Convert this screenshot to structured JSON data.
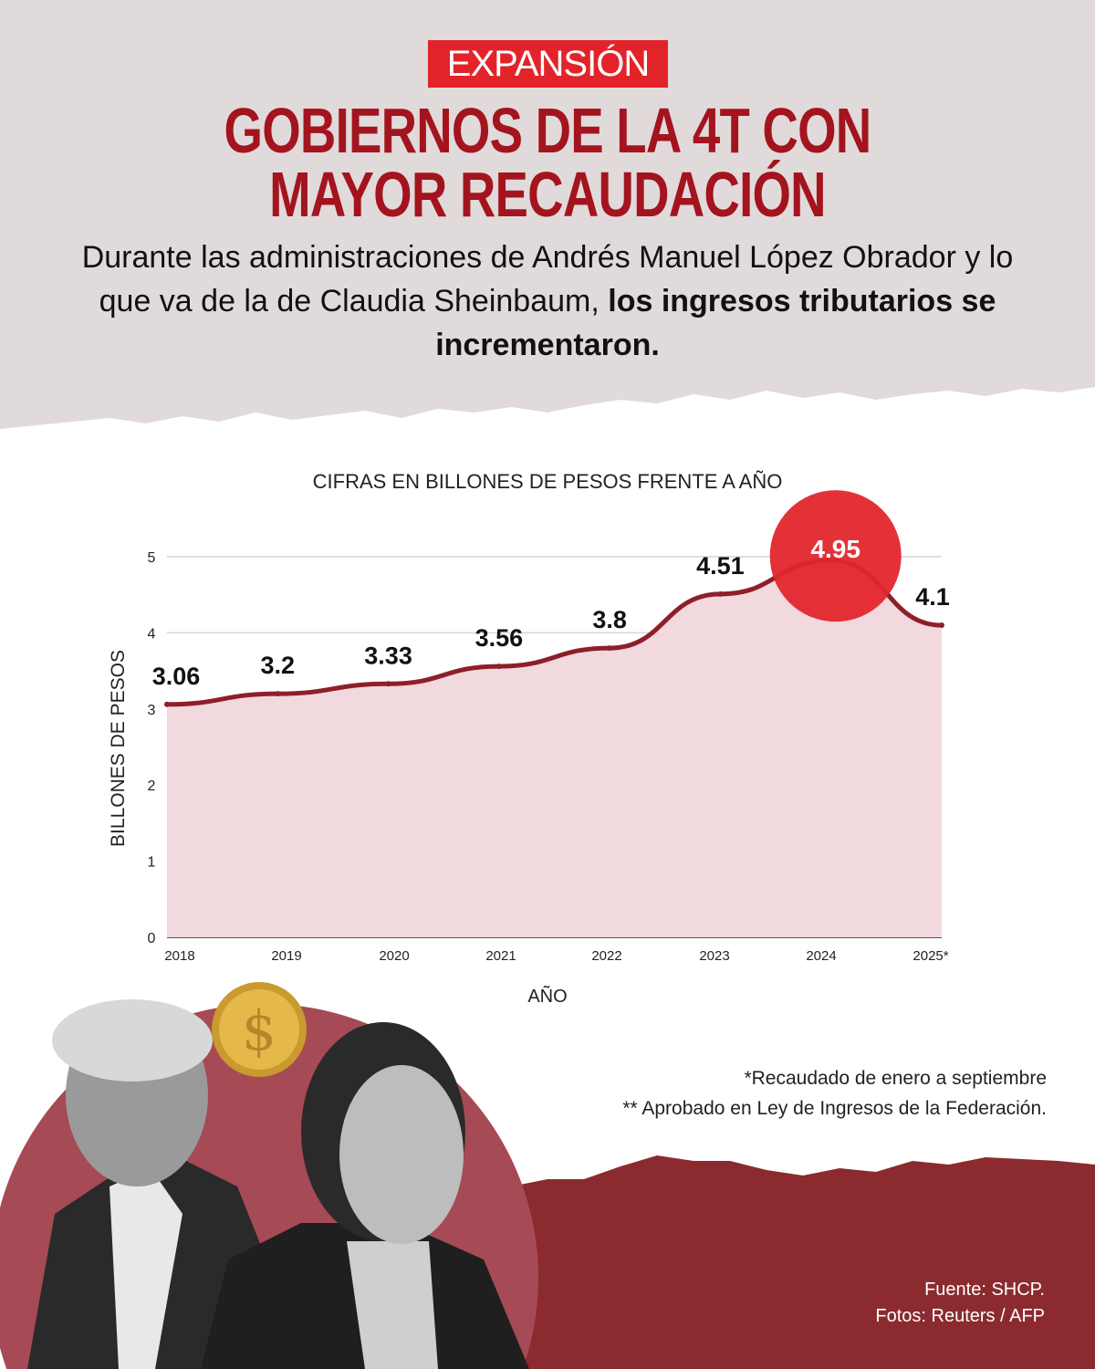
{
  "logo": "EXPANSIÓN",
  "title": {
    "line1": "GOBIERNOS DE LA 4T CON",
    "line2": "MAYOR RECAUDACIÓN"
  },
  "subtitle": {
    "part1": "Durante las administraciones de Andrés Manuel López Obrador y lo que va de la de Claudia Sheinbaum, ",
    "bold": "los ingresos tributarios se incrementaron."
  },
  "chart_data": {
    "type": "area",
    "title": "CIFRAS EN BILLONES DE PESOS FRENTE A AÑO",
    "xlabel": "AÑO",
    "ylabel": "BILLONES DE PESOS",
    "categories": [
      "2018",
      "2019",
      "2020",
      "2021",
      "2022",
      "2023",
      "2024",
      "2025*"
    ],
    "values": [
      3.06,
      3.2,
      3.33,
      3.56,
      3.8,
      4.51,
      4.95,
      4.1
    ],
    "data_labels": [
      "3.06",
      "3.2",
      "3.33",
      "3.56",
      "3.8",
      "4.51",
      "4.95",
      "4.1"
    ],
    "highlight": "2024",
    "ylim": [
      0,
      5
    ],
    "yticks": [
      "0",
      "1",
      "2",
      "3",
      "4",
      "5"
    ],
    "grid": true,
    "colors": {
      "line": "#8e1f2a",
      "fill": "#f1d9dd",
      "highlight": "#e3262d"
    }
  },
  "notes": [
    "*Recaudado de enero a septiembre",
    "** Aprobado en Ley de Ingresos de la Federación."
  ],
  "source": {
    "fuente": "Fuente: SHCP.",
    "fotos": "Fotos: Reuters / AFP"
  },
  "colors": {
    "top_bg": "#e1dadb",
    "dark_red": "#8b2b2f",
    "circle": "#a64a55",
    "title": "#a3141f"
  }
}
